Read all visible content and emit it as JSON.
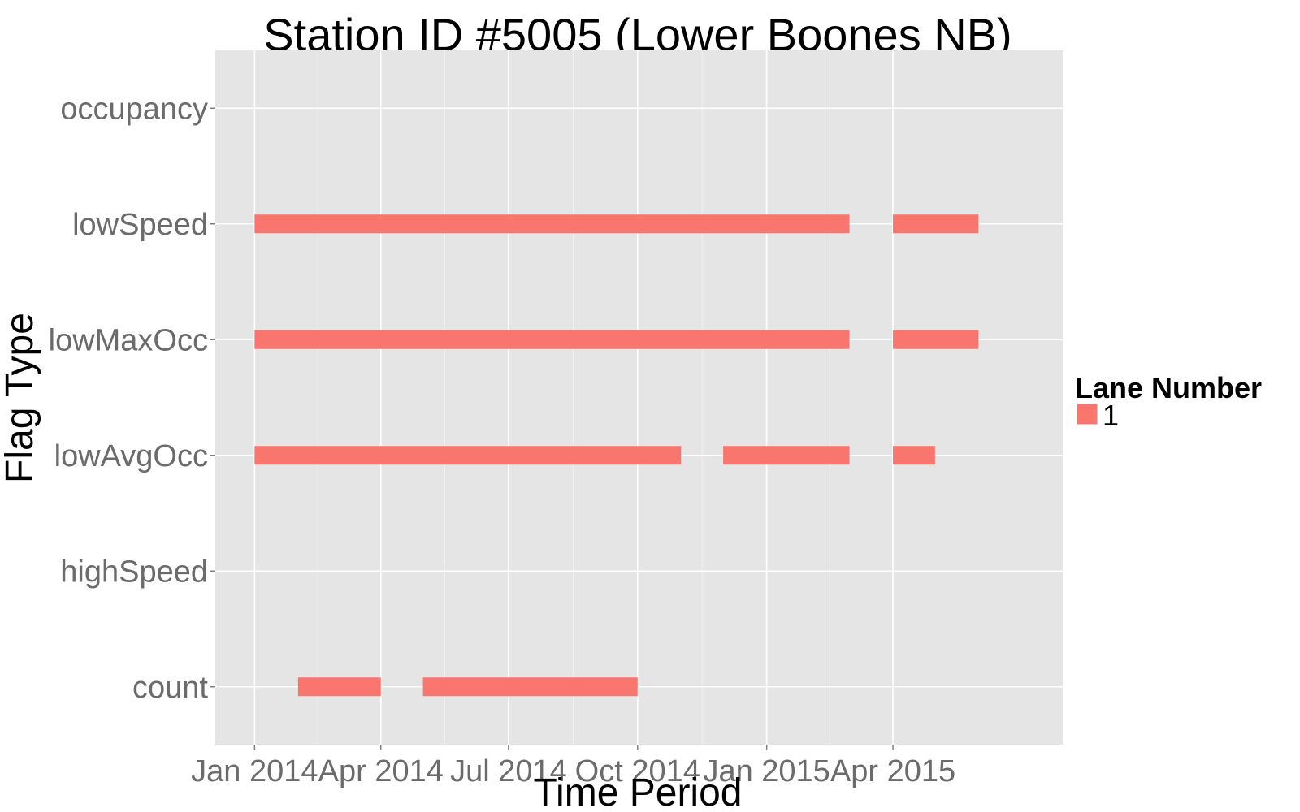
{
  "chart_data": {
    "type": "bar",
    "subtype": "timeline",
    "title": "Station ID #5005 (Lower Boones NB)",
    "xlabel": "Time Period",
    "ylabel": "Flag Type",
    "x_ticks": [
      "2014-01-01",
      "2014-04-01",
      "2014-07-01",
      "2014-10-01",
      "2015-01-01",
      "2015-04-01"
    ],
    "x_tick_labels": [
      "Jan 2014",
      "Apr 2014",
      "Jul 2014",
      "Oct 2014",
      "Jan 2015",
      "Apr 2015"
    ],
    "xlim": [
      "2013-12-04",
      "2015-07-31"
    ],
    "categories": [
      "count",
      "highSpeed",
      "lowAvgOcc",
      "lowMaxOcc",
      "lowSpeed",
      "occupancy"
    ],
    "grid": true,
    "legend": {
      "title": "Lane Number",
      "position": "right"
    },
    "series": [
      {
        "name": "1",
        "color": "#F8766D",
        "segments": [
          {
            "category": "lowSpeed",
            "start": "2014-01-01",
            "end": "2015-03-01"
          },
          {
            "category": "lowSpeed",
            "start": "2015-04-01",
            "end": "2015-06-01"
          },
          {
            "category": "lowMaxOcc",
            "start": "2014-01-01",
            "end": "2015-03-01"
          },
          {
            "category": "lowMaxOcc",
            "start": "2015-04-01",
            "end": "2015-06-01"
          },
          {
            "category": "lowAvgOcc",
            "start": "2014-01-01",
            "end": "2014-11-01"
          },
          {
            "category": "lowAvgOcc",
            "start": "2014-12-01",
            "end": "2015-03-01"
          },
          {
            "category": "lowAvgOcc",
            "start": "2015-04-01",
            "end": "2015-05-01"
          },
          {
            "category": "count",
            "start": "2014-02-01",
            "end": "2014-04-01"
          },
          {
            "category": "count",
            "start": "2014-05-01",
            "end": "2014-10-01"
          }
        ]
      }
    ]
  }
}
